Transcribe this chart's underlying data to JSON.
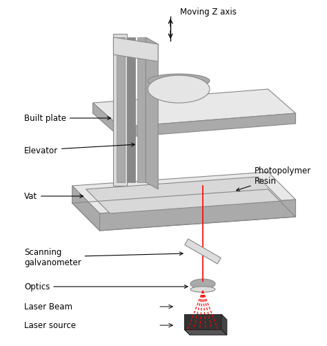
{
  "bg_color": "#ffffff",
  "line_color": "#000000",
  "gray_dark": "#888888",
  "gray_mid": "#aaaaaa",
  "gray_light": "#cccccc",
  "gray_lighter": "#dddddd",
  "gray_lightest": "#e8e8e8",
  "red_color": "#ff0000",
  "dark_color": "#333333",
  "labels": {
    "moving_z": "Moving Z axis",
    "built_plate": "Built plate",
    "elevator": "Elevator",
    "vat": "Vat",
    "photopolymer": "Photopolymer\nResin",
    "scanning": "Scanning\ngalvanometer",
    "optics": "Optics",
    "laser_beam": "Laser Beam",
    "laser_source": "Laser source"
  },
  "figsize": [
    4.74,
    5.02
  ],
  "dpi": 100
}
